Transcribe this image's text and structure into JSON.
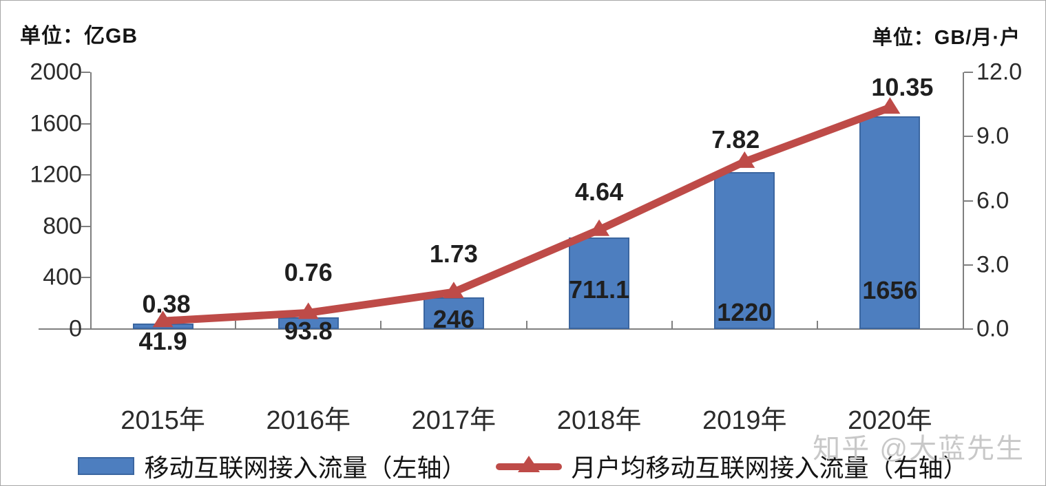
{
  "watermark": "知乎 @大蓝先生",
  "chart_data": {
    "type": "bar",
    "subtype": "bar-line-combo",
    "categories": [
      "2015年",
      "2016年",
      "2017年",
      "2018年",
      "2019年",
      "2020年"
    ],
    "series": [
      {
        "name": "移动互联网接入流量（左轴）",
        "type": "bar",
        "axis": "left",
        "values": [
          41.9,
          93.8,
          246,
          711.1,
          1220,
          1656
        ],
        "color": "#4d7ebf"
      },
      {
        "name": "月户均移动互联网接入流量（右轴）",
        "type": "line",
        "axis": "right",
        "marker": "triangle-up",
        "values": [
          0.38,
          0.76,
          1.73,
          4.64,
          7.82,
          10.35
        ],
        "color": "#be4b48"
      }
    ],
    "left_axis": {
      "label": "单位：亿GB",
      "ticks": [
        "0",
        "400",
        "800",
        "1200",
        "1600",
        "2000"
      ],
      "range": [
        0,
        2000
      ]
    },
    "right_axis": {
      "label": "单位：GB/月·户",
      "ticks": [
        "0.0",
        "3.0",
        "6.0",
        "9.0",
        "12.0"
      ],
      "range": [
        0,
        12
      ]
    },
    "grid": false,
    "legend_position": "bottom",
    "data_labels": true
  }
}
